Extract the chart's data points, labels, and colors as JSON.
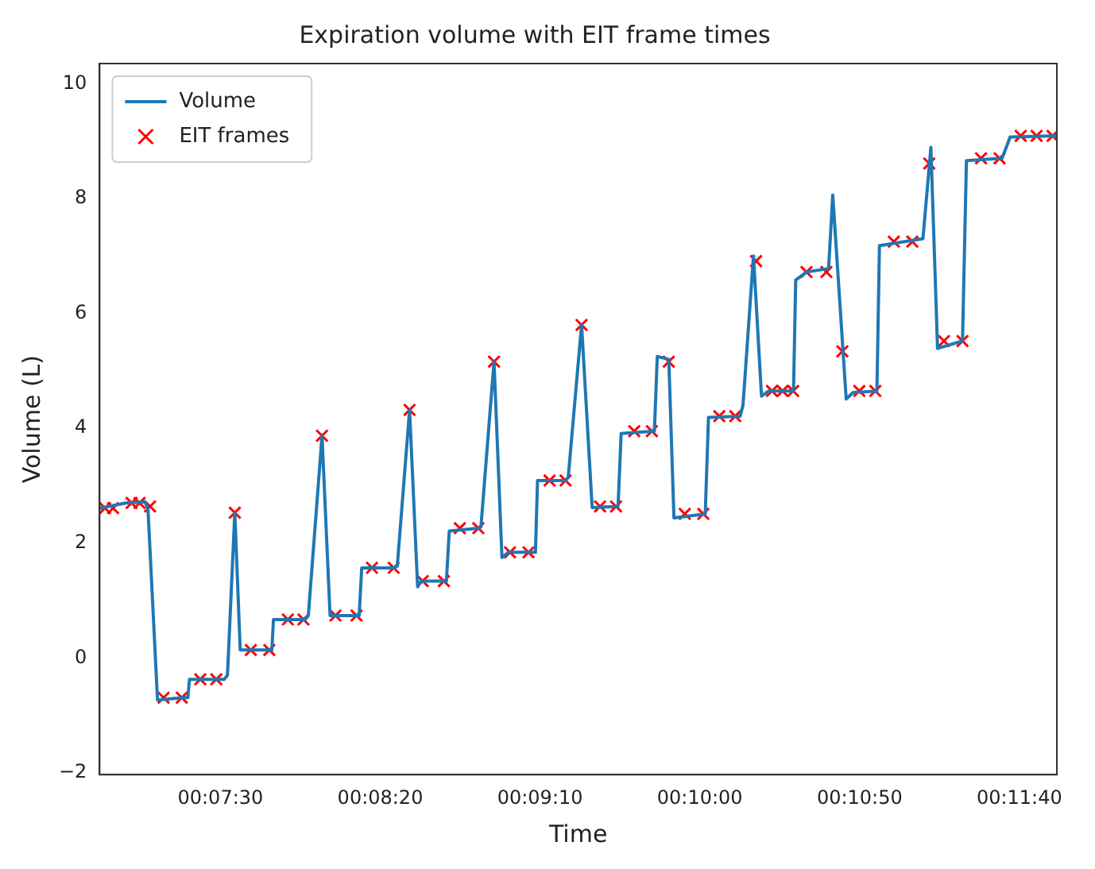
{
  "chart_data": {
    "type": "line",
    "title": "Expiration volume with EIT frame times",
    "xlabel": "Time",
    "ylabel": "Volume (L)",
    "xlim": [
      0.1145,
      0.1977
    ],
    "ylim": [
      -2.03,
      10.35
    ],
    "xticks": [
      {
        "value": 0.125,
        "label": "00:07:30"
      },
      {
        "value": 0.13889,
        "label": "00:08:20"
      },
      {
        "value": 0.15278,
        "label": "00:09:10"
      },
      {
        "value": 0.16667,
        "label": "00:10:00"
      },
      {
        "value": 0.18056,
        "label": "00:10:50"
      },
      {
        "value": 0.19444,
        "label": "00:11:40"
      }
    ],
    "yticks": [
      {
        "value": -2,
        "label": "−2"
      },
      0,
      2,
      4,
      6,
      8,
      10
    ],
    "grid": false,
    "legend": "top left",
    "series": [
      {
        "name": "Volume",
        "color": "#1f77b4",
        "marker": "none",
        "line_style": "solid",
        "x": [
          0.1145,
          0.11678,
          0.11844,
          0.1187,
          0.11953,
          0.12175,
          0.12217,
          0.12231,
          0.12533,
          0.12561,
          0.12625,
          0.12672,
          0.12947,
          0.12961,
          0.13236,
          0.13264,
          0.13383,
          0.13453,
          0.13706,
          0.13728,
          0.14011,
          0.14037,
          0.14144,
          0.14214,
          0.14245,
          0.14464,
          0.14489,
          0.14742,
          0.14764,
          0.14878,
          0.14947,
          0.15003,
          0.15238,
          0.15256,
          0.155,
          0.15523,
          0.15639,
          0.15731,
          0.15956,
          0.15983,
          0.16272,
          0.16297,
          0.16397,
          0.16442,
          0.16714,
          0.16742,
          0.17017,
          0.17042,
          0.17133,
          0.17203,
          0.17267,
          0.17481,
          0.175,
          0.17594,
          0.17786,
          0.17822,
          0.17939,
          0.17997,
          0.18206,
          0.18228,
          0.18606,
          0.18675,
          0.18733,
          0.1895,
          0.18984,
          0.19294,
          0.19364,
          0.19769
        ],
        "values": [
          2.61,
          2.7,
          2.72,
          2.6,
          -0.73,
          -0.69,
          -0.69,
          -0.37,
          -0.37,
          -0.3,
          2.53,
          0.14,
          0.14,
          0.67,
          0.67,
          0.74,
          3.87,
          0.74,
          0.74,
          1.57,
          1.57,
          1.6,
          4.32,
          1.24,
          1.34,
          1.34,
          2.21,
          2.26,
          2.28,
          5.16,
          1.75,
          1.84,
          1.84,
          3.09,
          3.09,
          3.15,
          5.8,
          2.62,
          2.64,
          3.91,
          3.95,
          5.25,
          5.2,
          2.44,
          2.51,
          4.19,
          4.21,
          4.4,
          7.0,
          4.56,
          4.65,
          4.65,
          6.58,
          6.72,
          6.78,
          8.06,
          4.51,
          4.62,
          4.65,
          7.18,
          7.3,
          8.89,
          5.39,
          5.52,
          8.66,
          8.7,
          9.07,
          9.09
        ]
      },
      {
        "name": "EIT frames",
        "type": "scatter",
        "color": "#ff0000",
        "marker": "cross",
        "x": [
          0.11497,
          0.11567,
          0.11728,
          0.11797,
          0.11889,
          0.12006,
          0.12164,
          0.12325,
          0.12464,
          0.12625,
          0.12764,
          0.12925,
          0.13086,
          0.13222,
          0.13383,
          0.135,
          0.13683,
          0.13817,
          0.14006,
          0.14144,
          0.14258,
          0.14442,
          0.14581,
          0.14742,
          0.14878,
          0.15017,
          0.15178,
          0.15361,
          0.155,
          0.15639,
          0.158,
          0.15939,
          0.16097,
          0.1625,
          0.16397,
          0.16536,
          0.16697,
          0.16836,
          0.16975,
          0.17156,
          0.17294,
          0.17386,
          0.17478,
          0.17594,
          0.17767,
          0.17906,
          0.18053,
          0.18192,
          0.18353,
          0.18514,
          0.18661,
          0.18789,
          0.1895,
          0.19111,
          0.19272,
          0.19456,
          0.19594,
          0.19733
        ],
        "values": [
          2.61,
          2.61,
          2.7,
          2.7,
          2.64,
          -0.69,
          -0.69,
          -0.37,
          -0.37,
          2.53,
          0.14,
          0.14,
          0.67,
          0.67,
          3.87,
          0.74,
          0.74,
          1.57,
          1.57,
          4.32,
          1.34,
          1.34,
          2.26,
          2.26,
          5.16,
          1.84,
          1.84,
          3.09,
          3.09,
          5.8,
          2.64,
          2.64,
          3.95,
          3.95,
          5.16,
          2.51,
          2.51,
          4.21,
          4.21,
          6.91,
          4.65,
          4.65,
          4.65,
          6.72,
          6.72,
          5.34,
          4.65,
          4.65,
          7.25,
          7.25,
          8.61,
          5.52,
          5.52,
          8.7,
          8.7,
          9.09,
          9.09,
          9.09
        ]
      }
    ]
  }
}
